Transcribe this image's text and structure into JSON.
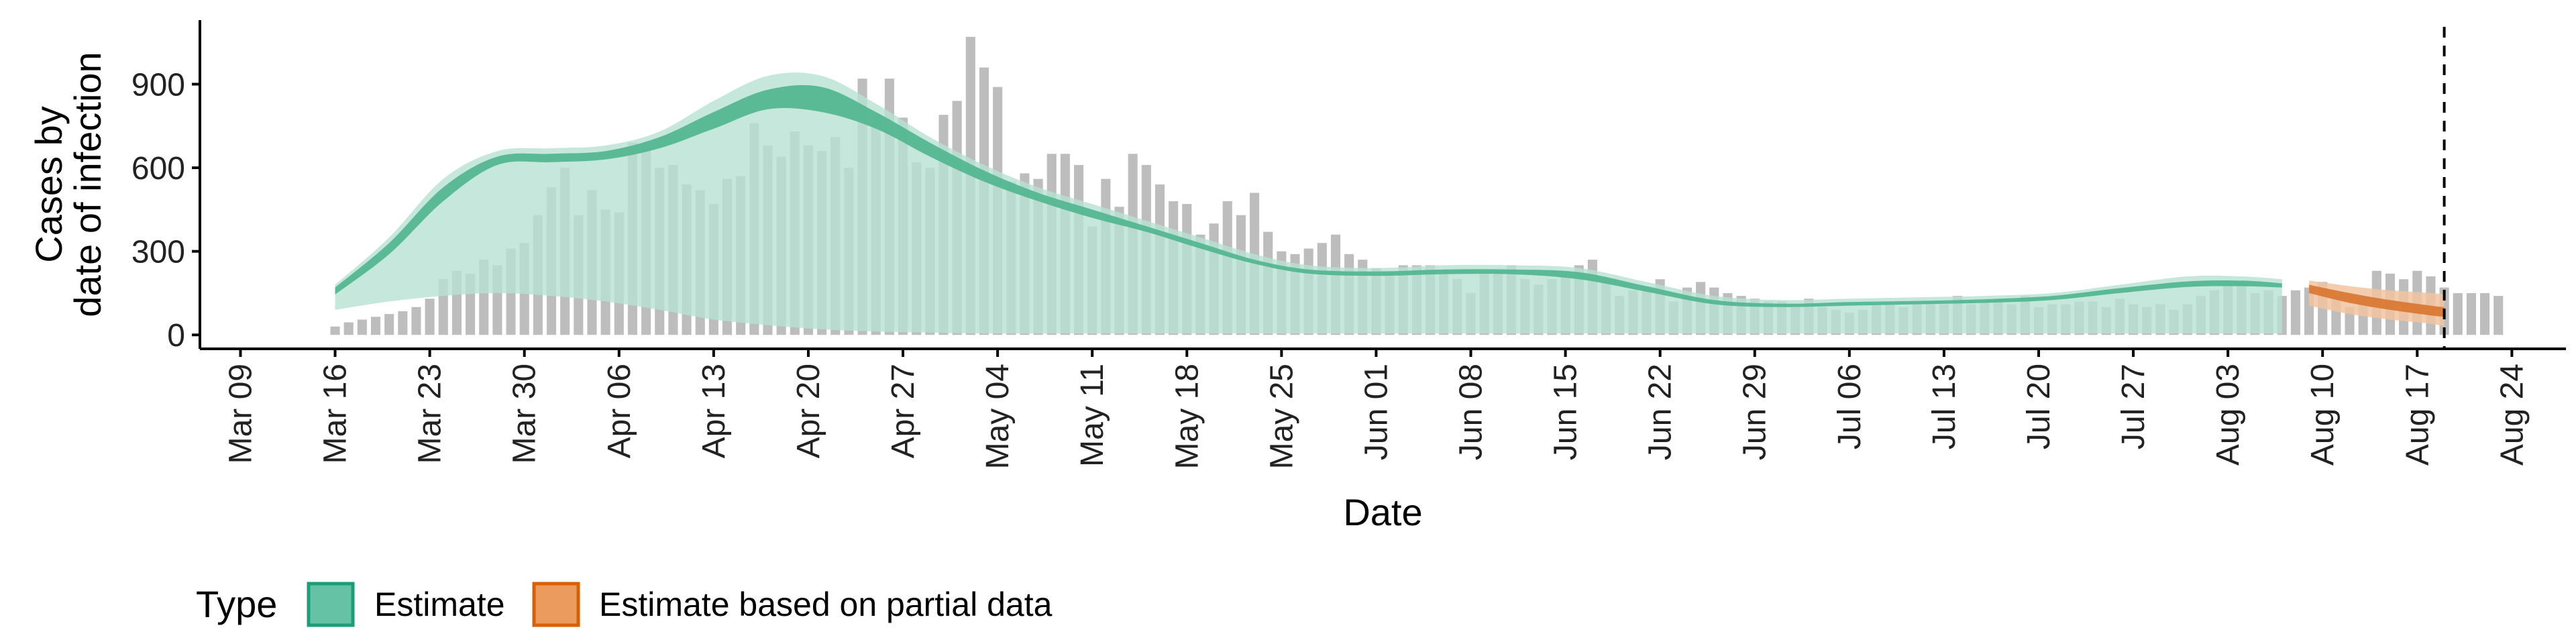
{
  "chart_data": {
    "type": "bar",
    "xlabel": "Date",
    "ylabel_line1": "Cases by",
    "ylabel_line2": "date of infection",
    "x_domain": [
      "2020-03-06",
      "2020-08-28"
    ],
    "ylim": [
      -50,
      1130
    ],
    "y_ticks": [
      0,
      300,
      600,
      900
    ],
    "x_ticks": [
      {
        "date": "2020-03-09",
        "label": "Mar 09"
      },
      {
        "date": "2020-03-16",
        "label": "Mar 16"
      },
      {
        "date": "2020-03-23",
        "label": "Mar 23"
      },
      {
        "date": "2020-03-30",
        "label": "Mar 30"
      },
      {
        "date": "2020-04-06",
        "label": "Apr 06"
      },
      {
        "date": "2020-04-13",
        "label": "Apr 13"
      },
      {
        "date": "2020-04-20",
        "label": "Apr 20"
      },
      {
        "date": "2020-04-27",
        "label": "Apr 27"
      },
      {
        "date": "2020-05-04",
        "label": "May 04"
      },
      {
        "date": "2020-05-11",
        "label": "May 11"
      },
      {
        "date": "2020-05-18",
        "label": "May 18"
      },
      {
        "date": "2020-05-25",
        "label": "May 25"
      },
      {
        "date": "2020-06-01",
        "label": "Jun 01"
      },
      {
        "date": "2020-06-08",
        "label": "Jun 08"
      },
      {
        "date": "2020-06-15",
        "label": "Jun 15"
      },
      {
        "date": "2020-06-22",
        "label": "Jun 22"
      },
      {
        "date": "2020-06-29",
        "label": "Jun 29"
      },
      {
        "date": "2020-07-06",
        "label": "Jul 06"
      },
      {
        "date": "2020-07-13",
        "label": "Jul 13"
      },
      {
        "date": "2020-07-20",
        "label": "Jul 20"
      },
      {
        "date": "2020-07-27",
        "label": "Jul 27"
      },
      {
        "date": "2020-08-03",
        "label": "Aug 03"
      },
      {
        "date": "2020-08-10",
        "label": "Aug 10"
      },
      {
        "date": "2020-08-17",
        "label": "Aug 17"
      },
      {
        "date": "2020-08-24",
        "label": "Aug 24"
      }
    ],
    "cases": {
      "start_date": "2020-03-16",
      "values": [
        30,
        45,
        55,
        65,
        75,
        85,
        100,
        130,
        200,
        230,
        220,
        270,
        250,
        310,
        330,
        430,
        530,
        600,
        430,
        520,
        450,
        440,
        690,
        680,
        600,
        610,
        540,
        520,
        470,
        560,
        570,
        760,
        680,
        640,
        730,
        680,
        660,
        710,
        600,
        920,
        790,
        920,
        780,
        620,
        600,
        790,
        840,
        1070,
        960,
        890,
        550,
        580,
        560,
        650,
        650,
        610,
        390,
        560,
        460,
        650,
        610,
        540,
        480,
        470,
        360,
        400,
        480,
        430,
        510,
        370,
        300,
        290,
        310,
        330,
        360,
        290,
        270,
        240,
        220,
        250,
        250,
        250,
        230,
        200,
        150,
        220,
        230,
        250,
        200,
        180,
        200,
        210,
        250,
        270,
        200,
        140,
        160,
        170,
        200,
        120,
        170,
        190,
        170,
        150,
        140,
        130,
        120,
        120,
        100,
        130,
        100,
        90,
        80,
        90,
        110,
        110,
        100,
        110,
        120,
        110,
        140,
        110,
        120,
        130,
        110,
        140,
        100,
        110,
        110,
        120,
        120,
        100,
        130,
        110,
        100,
        110,
        90,
        110,
        140,
        160,
        180,
        190,
        150,
        160,
        140,
        160,
        170,
        190,
        140,
        100,
        120,
        230,
        220,
        200,
        230,
        210,
        170,
        150,
        150,
        150,
        140
      ]
    },
    "estimate_band": {
      "x": [
        "2020-03-16",
        "2020-03-20",
        "2020-03-24",
        "2020-03-28",
        "2020-04-01",
        "2020-04-05",
        "2020-04-09",
        "2020-04-13",
        "2020-04-17",
        "2020-04-21",
        "2020-04-25",
        "2020-04-29",
        "2020-05-03",
        "2020-05-07",
        "2020-05-11",
        "2020-05-15",
        "2020-05-19",
        "2020-05-23",
        "2020-05-27",
        "2020-06-01",
        "2020-06-06",
        "2020-06-11",
        "2020-06-16",
        "2020-06-21",
        "2020-06-26",
        "2020-07-01",
        "2020-07-06",
        "2020-07-11",
        "2020-07-16",
        "2020-07-21",
        "2020-07-26",
        "2020-07-31",
        "2020-08-04",
        "2020-08-07"
      ],
      "outer_upper": [
        180,
        350,
        560,
        660,
        670,
        680,
        730,
        840,
        930,
        930,
        830,
        710,
        610,
        530,
        470,
        410,
        350,
        290,
        250,
        240,
        250,
        250,
        240,
        190,
        140,
        125,
        130,
        135,
        140,
        150,
        180,
        210,
        210,
        200
      ],
      "outer_lower": [
        90,
        120,
        140,
        150,
        140,
        120,
        90,
        55,
        35,
        20,
        12,
        8,
        5,
        5,
        5,
        5,
        5,
        5,
        5,
        5,
        5,
        5,
        5,
        5,
        5,
        5,
        5,
        5,
        5,
        5,
        5,
        5,
        5,
        5
      ],
      "inner_upper": [
        170,
        330,
        530,
        640,
        650,
        660,
        710,
        800,
        880,
        890,
        800,
        690,
        590,
        510,
        450,
        390,
        330,
        270,
        235,
        228,
        235,
        235,
        225,
        175,
        125,
        112,
        118,
        122,
        128,
        140,
        168,
        192,
        195,
        185
      ],
      "inner_lower": [
        145,
        290,
        480,
        610,
        620,
        630,
        670,
        740,
        810,
        800,
        740,
        640,
        550,
        480,
        420,
        370,
        310,
        255,
        220,
        212,
        218,
        218,
        200,
        155,
        110,
        100,
        105,
        110,
        115,
        125,
        150,
        172,
        175,
        170
      ]
    },
    "partial_band": {
      "x": [
        "2020-08-09",
        "2020-08-12",
        "2020-08-15",
        "2020-08-18",
        "2020-08-19"
      ],
      "outer_upper": [
        195,
        175,
        160,
        150,
        145
      ],
      "outer_lower": [
        105,
        75,
        55,
        40,
        30
      ],
      "inner_upper": [
        180,
        150,
        125,
        105,
        100
      ],
      "inner_lower": [
        150,
        115,
        90,
        70,
        65
      ]
    },
    "vline_date": "2020-08-19",
    "legend": {
      "title": "Type",
      "items": [
        {
          "label": "Estimate",
          "fill": "#66c2a5",
          "stroke": "#1b9e77"
        },
        {
          "label": "Estimate based on partial data",
          "fill": "#eb9b5e",
          "stroke": "#d95f02"
        }
      ]
    },
    "colors": {
      "bar": "#bdbdbd",
      "estimate_outer": "#b7e1d3",
      "estimate_inner": "#4fb58e",
      "partial_outer": "#f2c4a0",
      "partial_inner": "#d9752f",
      "axis": "#000000"
    }
  }
}
